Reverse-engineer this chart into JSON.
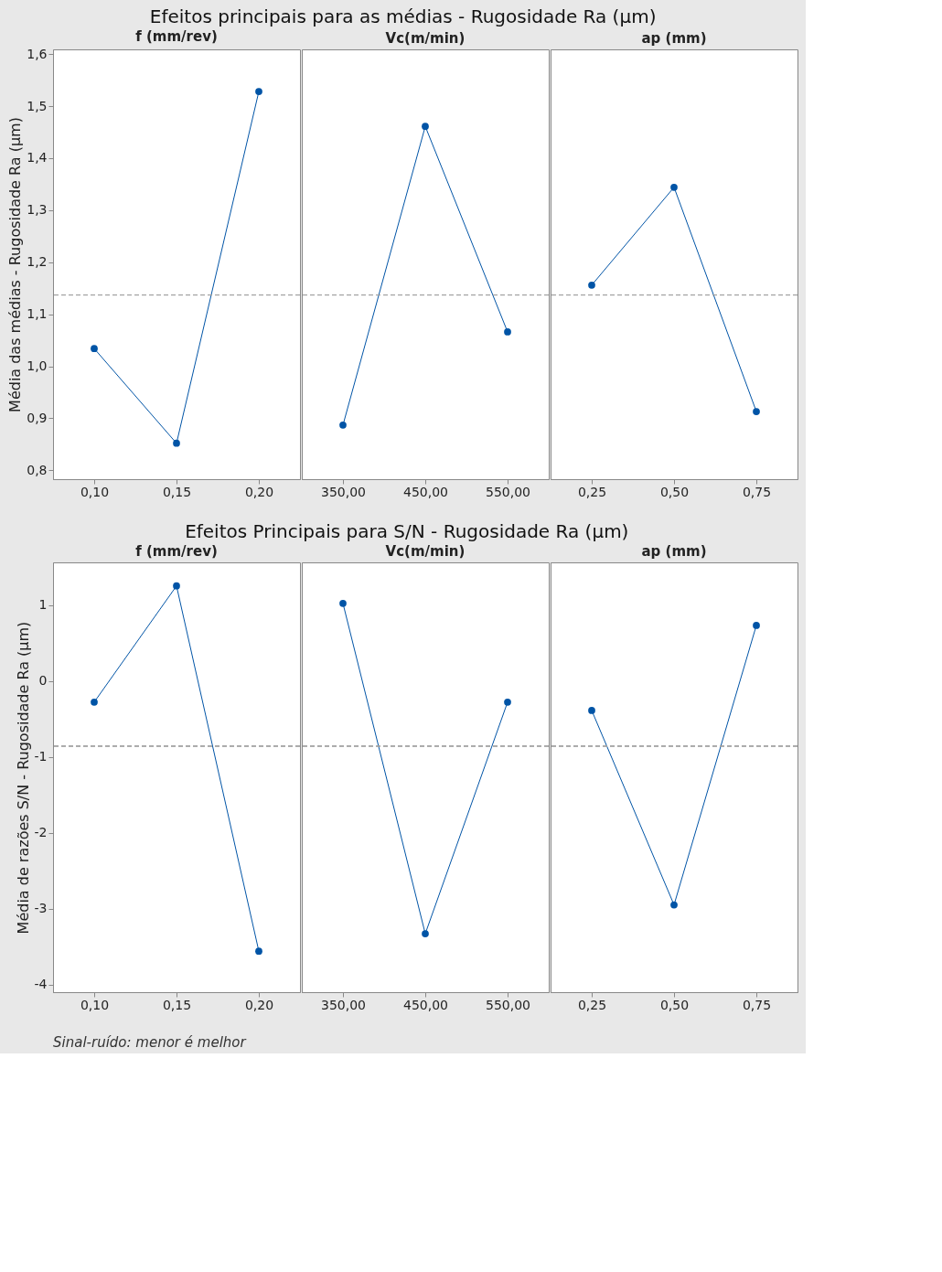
{
  "chart_data": [
    {
      "type": "line",
      "title": "f (mm/rev)",
      "ylabel": "Média das médias - Rugosidade Ra (µm)",
      "annotations": [
        "Efeitos principais para as médias - Rugosidade Ra (µm)"
      ],
      "categories": [
        "0,10",
        "0,15",
        "0,20"
      ],
      "values": [
        1.034,
        0.852,
        1.528
      ],
      "color": "#0054a6",
      "marker": "circle",
      "line_style": "solid",
      "ylim": [
        0.783,
        1.609
      ],
      "yticks": [
        {
          "value": 0.8,
          "label": "0,8"
        },
        {
          "value": 0.9,
          "label": "0,9"
        },
        {
          "value": 1.0,
          "label": "1,0"
        },
        {
          "value": 1.1,
          "label": "1,1"
        },
        {
          "value": 1.2,
          "label": "1,2"
        },
        {
          "value": 1.3,
          "label": "1,3"
        },
        {
          "value": 1.4,
          "label": "1,4"
        },
        {
          "value": 1.5,
          "label": "1,5"
        },
        {
          "value": 1.6,
          "label": "1,6"
        }
      ],
      "ref_lines": [
        {
          "axis": "y",
          "value": 1.137,
          "color": "#a0a0a0",
          "line_style": "dashed"
        }
      ],
      "grid": false
    },
    {
      "type": "line",
      "title": "Vc(m/min)",
      "categories": [
        "350,00",
        "450,00",
        "550,00"
      ],
      "values": [
        0.887,
        1.461,
        1.066
      ],
      "color": "#0054a6",
      "marker": "circle",
      "line_style": "solid",
      "ylim": [
        0.783,
        1.609
      ],
      "yticks": [
        0.8,
        0.9,
        1.0,
        1.1,
        1.2,
        1.3,
        1.4,
        1.5,
        1.6
      ],
      "tick_labels": "x",
      "ref_lines": [
        {
          "axis": "y",
          "value": 1.137,
          "color": "#a0a0a0",
          "line_style": "dashed"
        }
      ],
      "grid": false
    },
    {
      "type": "line",
      "title": "ap (mm)",
      "categories": [
        "0,25",
        "0,50",
        "0,75"
      ],
      "values": [
        1.156,
        1.344,
        0.913
      ],
      "color": "#0054a6",
      "marker": "circle",
      "line_style": "solid",
      "ylim": [
        0.783,
        1.609
      ],
      "yticks": [
        0.8,
        0.9,
        1.0,
        1.1,
        1.2,
        1.3,
        1.4,
        1.5,
        1.6
      ],
      "tick_labels": "x",
      "ref_lines": [
        {
          "axis": "y",
          "value": 1.137,
          "color": "#a0a0a0",
          "line_style": "dashed"
        }
      ],
      "grid": false
    },
    {
      "type": "line",
      "title": "f (mm/rev)",
      "ylabel": "Média de razões S/N - Rugosidade Ra (µm)",
      "annotations": [
        "Efeitos Principais para S/N - Rugosidade Ra (µm)",
        "Sinal-ruído: menor é melhor"
      ],
      "categories": [
        "0,10",
        "0,15",
        "0,20"
      ],
      "values": [
        -0.28,
        1.25,
        -3.56
      ],
      "color": "#0054a6",
      "marker": "circle",
      "line_style": "solid",
      "ylim": [
        -4.1,
        1.56
      ],
      "yticks": [
        -4,
        -3,
        -2,
        -1,
        0,
        1
      ],
      "ref_lines": [
        {
          "axis": "y",
          "value": -0.86,
          "color": "#a0a0a0",
          "line_style": "dashed"
        }
      ],
      "grid": false
    },
    {
      "type": "line",
      "title": "Vc(m/min)",
      "categories": [
        "350,00",
        "450,00",
        "550,00"
      ],
      "values": [
        1.02,
        -3.33,
        -0.28
      ],
      "color": "#0054a6",
      "marker": "circle",
      "line_style": "solid",
      "ylim": [
        -4.1,
        1.56
      ],
      "yticks": [
        -4,
        -3,
        -2,
        -1,
        0,
        1
      ],
      "tick_labels": "x",
      "ref_lines": [
        {
          "axis": "y",
          "value": -0.86,
          "color": "#a0a0a0",
          "line_style": "dashed"
        }
      ],
      "grid": false
    },
    {
      "type": "line",
      "title": "ap (mm)",
      "categories": [
        "0,25",
        "0,50",
        "0,75"
      ],
      "values": [
        -0.39,
        -2.95,
        0.73
      ],
      "color": "#0054a6",
      "marker": "circle",
      "line_style": "solid",
      "ylim": [
        -4.1,
        1.56
      ],
      "yticks": [
        -4,
        -3,
        -2,
        -1,
        0,
        1
      ],
      "tick_labels": "x",
      "ref_lines": [
        {
          "axis": "y",
          "value": -0.86,
          "color": "#a0a0a0",
          "line_style": "dashed"
        }
      ],
      "grid": false
    }
  ]
}
